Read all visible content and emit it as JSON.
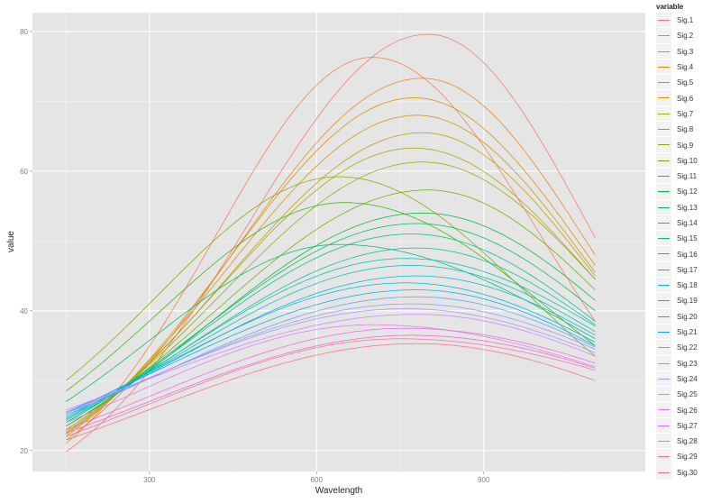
{
  "chart_data": {
    "type": "line",
    "title": "",
    "xlabel": "Wavelength",
    "ylabel": "value",
    "xlim": [
      90,
      1190
    ],
    "ylim": [
      17,
      82.7
    ],
    "x_ticks": [
      300,
      600,
      900
    ],
    "x_tick_labels": [
      "300",
      "600",
      "900"
    ],
    "y_ticks": [
      20,
      40,
      60,
      80
    ],
    "y_tick_labels": [
      "20",
      "40",
      "60",
      "80"
    ],
    "grid": true,
    "panel_background": "#e5e5e5",
    "legend": {
      "title": "variable",
      "position": "right"
    },
    "x_range": [
      150,
      1100
    ],
    "series": [
      {
        "name": "Sig.1",
        "color": "#F8766D",
        "start": 19.8,
        "peak_x": 800,
        "peak": 79.6,
        "end": 50.5
      },
      {
        "name": "Sig.2",
        "color": "#F17D51",
        "start": 21.0,
        "peak_x": 700,
        "peak": 76.3,
        "end": 38.5
      },
      {
        "name": "Sig.3",
        "color": "#E7861B",
        "start": 21.5,
        "peak_x": 790,
        "peak": 73.3,
        "end": 48.0
      },
      {
        "name": "Sig.4",
        "color": "#DB8E00",
        "start": 22.0,
        "peak_x": 775,
        "peak": 70.5,
        "end": 46.5
      },
      {
        "name": "Sig.5",
        "color": "#CF9400",
        "start": 22.3,
        "peak_x": 780,
        "peak": 68.0,
        "end": 45.5
      },
      {
        "name": "Sig.6",
        "color": "#C09B00",
        "start": 22.5,
        "peak_x": 790,
        "peak": 65.5,
        "end": 45.0
      },
      {
        "name": "Sig.7",
        "color": "#AFA100",
        "start": 22.7,
        "peak_x": 775,
        "peak": 63.3,
        "end": 44.5
      },
      {
        "name": "Sig.8",
        "color": "#9CA700",
        "start": 23.0,
        "peak_x": 790,
        "peak": 61.3,
        "end": 44.5
      },
      {
        "name": "Sig.9",
        "color": "#85AD00",
        "start": 30.0,
        "peak_x": 640,
        "peak": 59.2,
        "end": 33.5
      },
      {
        "name": "Sig.10",
        "color": "#68B100",
        "start": 23.5,
        "peak_x": 800,
        "peak": 57.3,
        "end": 43.0
      },
      {
        "name": "Sig.11",
        "color": "#39B600",
        "start": 28.5,
        "peak_x": 650,
        "peak": 55.5,
        "end": 35.0
      },
      {
        "name": "Sig.12",
        "color": "#00BA38",
        "start": 23.5,
        "peak_x": 790,
        "peak": 54.0,
        "end": 41.5
      },
      {
        "name": "Sig.13",
        "color": "#00BC59",
        "start": 24.0,
        "peak_x": 780,
        "peak": 52.5,
        "end": 40.0
      },
      {
        "name": "Sig.14",
        "color": "#00BE70",
        "start": 27.0,
        "peak_x": 640,
        "peak": 49.5,
        "end": 36.0
      },
      {
        "name": "Sig.15",
        "color": "#00C086",
        "start": 24.0,
        "peak_x": 770,
        "peak": 51.0,
        "end": 38.5
      },
      {
        "name": "Sig.16",
        "color": "#00C19A",
        "start": 24.3,
        "peak_x": 780,
        "peak": 49.0,
        "end": 38.0
      },
      {
        "name": "Sig.17",
        "color": "#00C0AF",
        "start": 24.5,
        "peak_x": 760,
        "peak": 47.5,
        "end": 37.8
      },
      {
        "name": "Sig.18",
        "color": "#00BDC2",
        "start": 24.7,
        "peak_x": 770,
        "peak": 46.5,
        "end": 37.0
      },
      {
        "name": "Sig.19",
        "color": "#00B9D3",
        "start": 25.0,
        "peak_x": 780,
        "peak": 45.0,
        "end": 36.5
      },
      {
        "name": "Sig.20",
        "color": "#00B3E2",
        "start": 25.3,
        "peak_x": 760,
        "peak": 44.0,
        "end": 35.5
      },
      {
        "name": "Sig.21",
        "color": "#00ABFD",
        "start": 25.5,
        "peak_x": 780,
        "peak": 43.0,
        "end": 35.0
      },
      {
        "name": "Sig.22",
        "color": "#61A3FF",
        "start": 25.0,
        "peak_x": 780,
        "peak": 42.0,
        "end": 34.8
      },
      {
        "name": "Sig.23",
        "color": "#8F9AFF",
        "start": 25.3,
        "peak_x": 770,
        "peak": 41.0,
        "end": 34.5
      },
      {
        "name": "Sig.24",
        "color": "#B18FFF",
        "start": 25.5,
        "peak_x": 760,
        "peak": 40.3,
        "end": 34.0
      },
      {
        "name": "Sig.25",
        "color": "#CB84FF",
        "start": 25.8,
        "peak_x": 780,
        "peak": 39.5,
        "end": 33.5
      },
      {
        "name": "Sig.26",
        "color": "#E17AF4",
        "start": 24.0,
        "peak_x": 700,
        "peak": 38.0,
        "end": 32.0
      },
      {
        "name": "Sig.27",
        "color": "#F069E3",
        "start": 23.0,
        "peak_x": 760,
        "peak": 37.5,
        "end": 32.5
      },
      {
        "name": "Sig.28",
        "color": "#F962CF",
        "start": 22.5,
        "peak_x": 770,
        "peak": 36.5,
        "end": 31.8
      },
      {
        "name": "Sig.29",
        "color": "#FE6EA8",
        "start": 22.0,
        "peak_x": 750,
        "peak": 36.0,
        "end": 31.5
      },
      {
        "name": "Sig.30",
        "color": "#FD6F87",
        "start": 21.5,
        "peak_x": 780,
        "peak": 35.3,
        "end": 30.0
      }
    ]
  }
}
